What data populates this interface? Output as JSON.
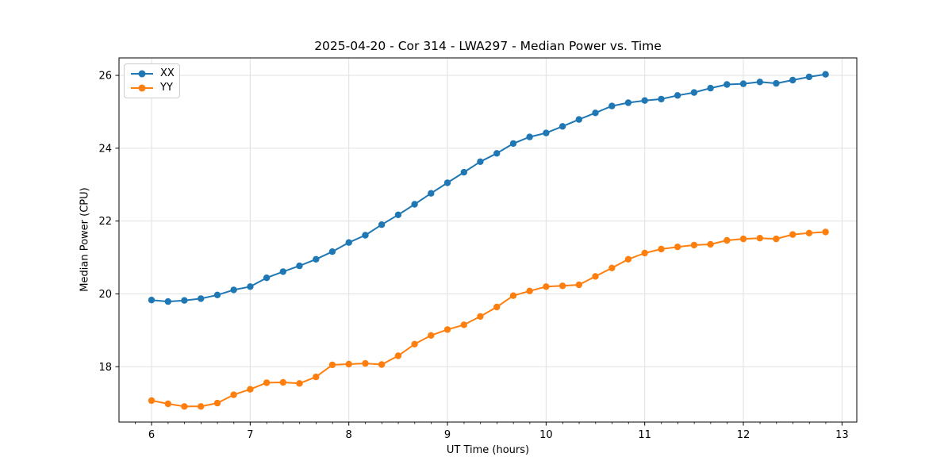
{
  "chart_data": {
    "type": "line",
    "title": "2025-04-20 - Cor 314 - LWA297 - Median Power vs. Time",
    "xlabel": "UT Time (hours)",
    "ylabel": "Median Power (CPU)",
    "xlim": [
      5.67,
      13.15
    ],
    "ylim": [
      16.48,
      26.48
    ],
    "x_ticks": [
      6,
      7,
      8,
      9,
      10,
      11,
      12,
      13
    ],
    "y_ticks": [
      18,
      20,
      22,
      24,
      26
    ],
    "x_minor_step": 0.1667,
    "grid": true,
    "grid_color": "#e0e0e0",
    "spine_color": "#000000",
    "legend": {
      "position": "upper left"
    },
    "x": [
      6.0,
      6.167,
      6.333,
      6.5,
      6.667,
      6.833,
      7.0,
      7.167,
      7.333,
      7.5,
      7.667,
      7.833,
      8.0,
      8.167,
      8.333,
      8.5,
      8.667,
      8.833,
      9.0,
      9.167,
      9.333,
      9.5,
      9.667,
      9.833,
      10.0,
      10.167,
      10.333,
      10.5,
      10.667,
      10.833,
      11.0,
      11.167,
      11.333,
      11.5,
      11.667,
      11.833,
      12.0,
      12.167,
      12.333,
      12.5,
      12.667,
      12.833
    ],
    "series": [
      {
        "name": "XX",
        "color": "#1f77b4",
        "marker": "circle",
        "values": [
          19.83,
          19.79,
          19.82,
          19.87,
          19.97,
          20.11,
          20.2,
          20.44,
          20.61,
          20.77,
          20.95,
          21.16,
          21.41,
          21.61,
          21.9,
          22.17,
          22.46,
          22.76,
          23.05,
          23.34,
          23.63,
          23.86,
          24.13,
          24.31,
          24.42,
          24.6,
          24.79,
          24.97,
          25.16,
          25.25,
          25.31,
          25.35,
          25.45,
          25.53,
          25.65,
          25.75,
          25.77,
          25.82,
          25.78,
          25.87,
          25.96,
          26.03
        ]
      },
      {
        "name": "YY",
        "color": "#ff7f0e",
        "marker": "circle",
        "values": [
          17.07,
          16.98,
          16.91,
          16.91,
          17.0,
          17.23,
          17.38,
          17.56,
          17.57,
          17.54,
          17.72,
          18.05,
          18.07,
          18.09,
          18.06,
          18.3,
          18.62,
          18.86,
          19.02,
          19.15,
          19.38,
          19.64,
          19.95,
          20.08,
          20.2,
          20.22,
          20.25,
          20.48,
          20.71,
          20.95,
          21.12,
          21.23,
          21.29,
          21.34,
          21.36,
          21.47,
          21.51,
          21.53,
          21.51,
          21.63,
          21.67,
          21.7
        ]
      }
    ]
  }
}
